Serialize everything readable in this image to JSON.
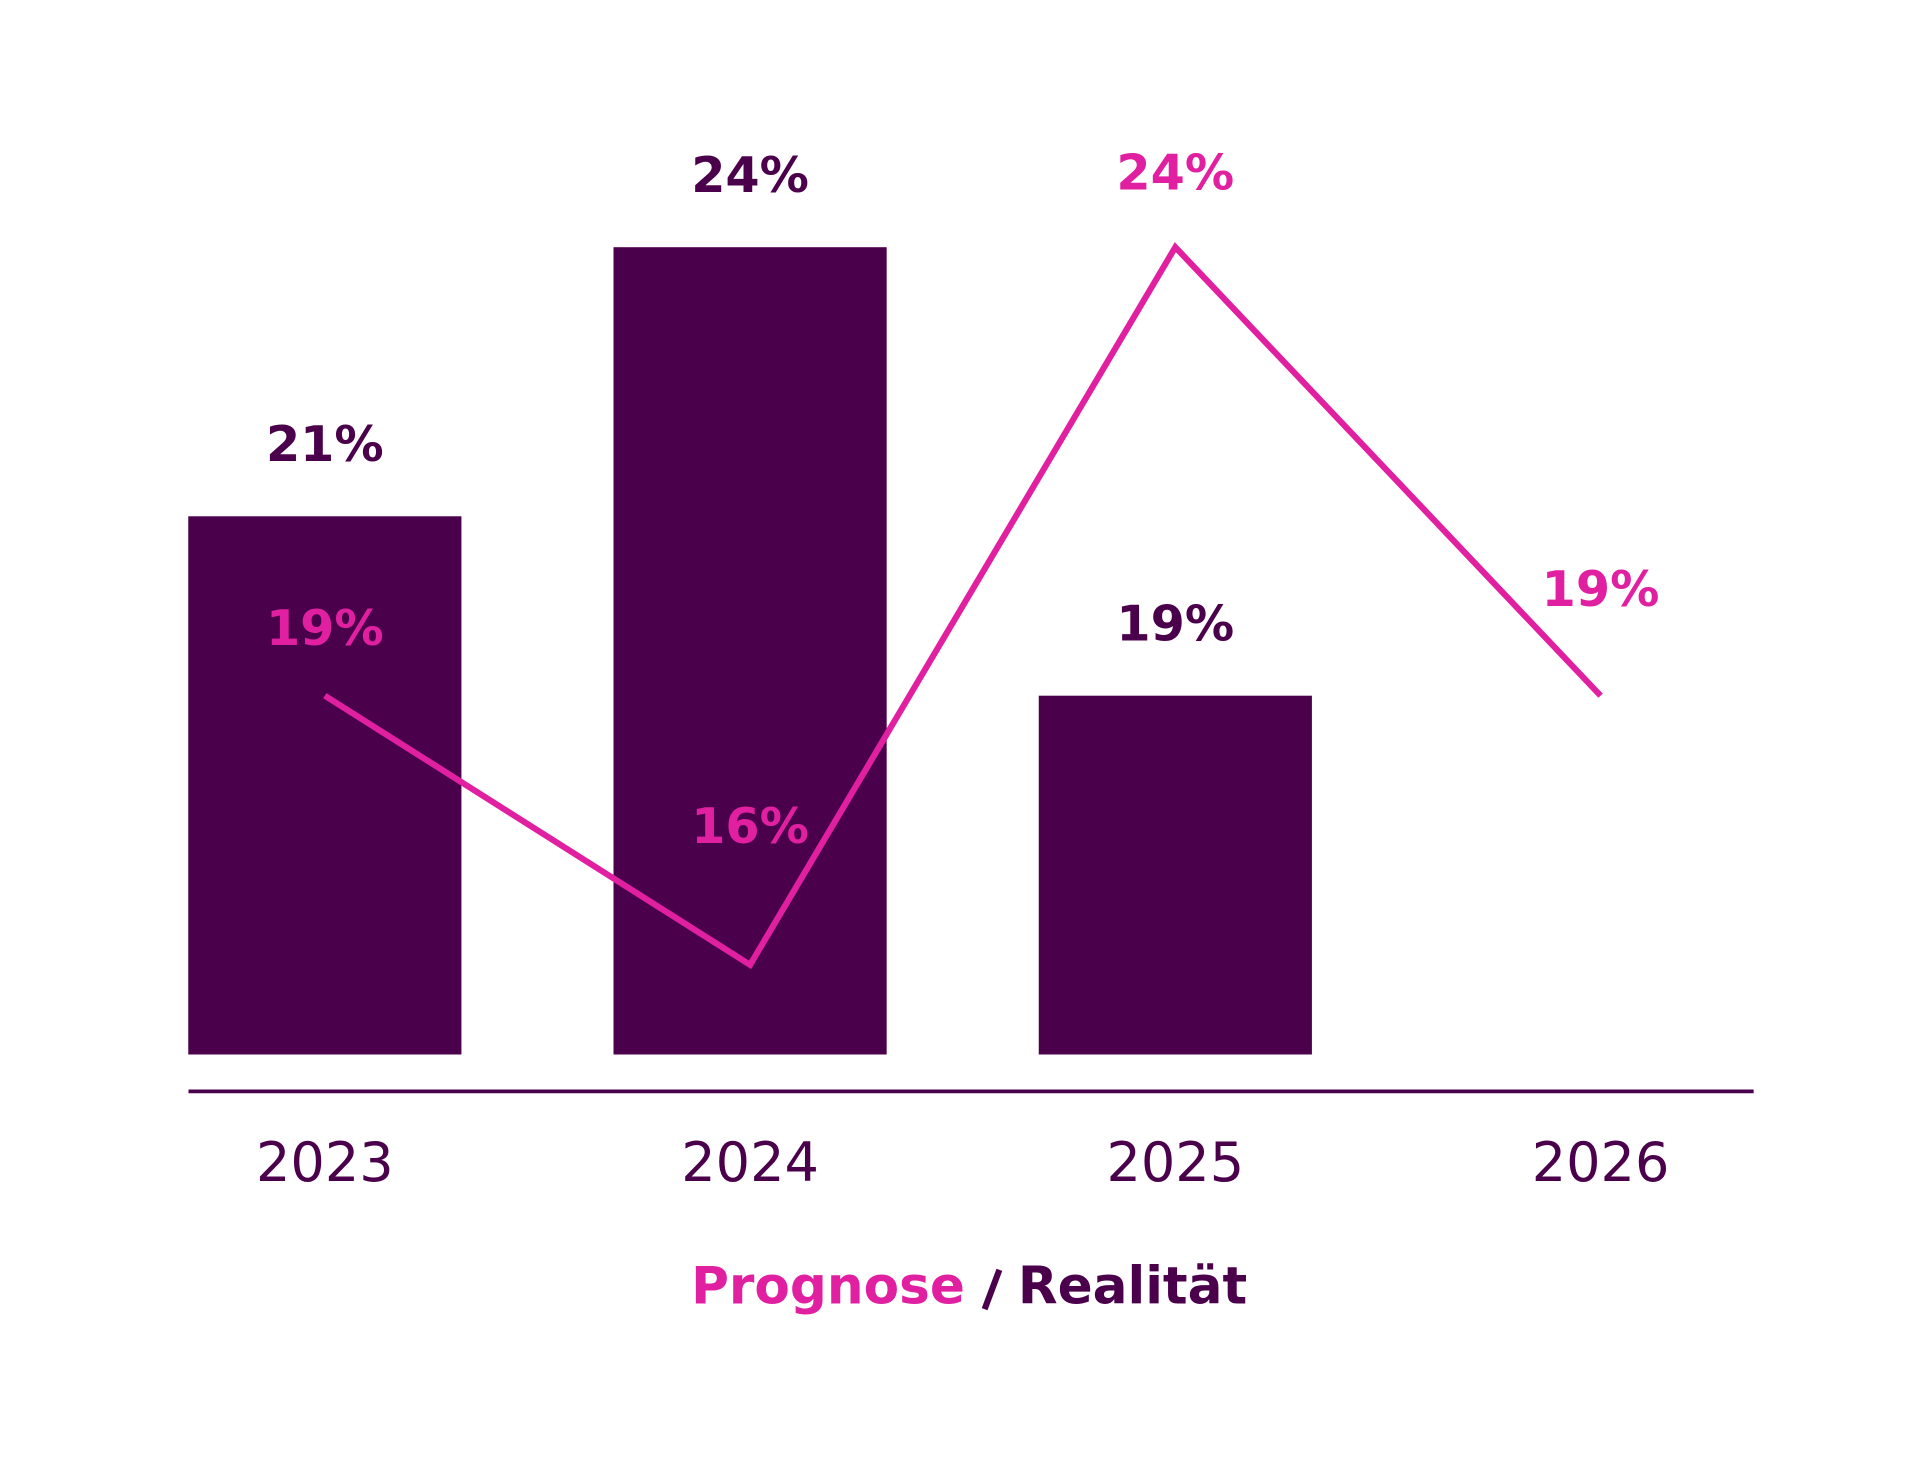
{
  "chart_data": {
    "type": "bar-line",
    "categories": [
      "2023",
      "2024",
      "2025",
      "2026"
    ],
    "ylim": [
      15,
      25
    ],
    "series": [
      {
        "name": "Prognose",
        "type": "line",
        "color": "#e020a0",
        "values": [
          19,
          16,
          24,
          19
        ],
        "value_labels": [
          "19%",
          "16%",
          "24%",
          "19%"
        ]
      },
      {
        "name": "Realität",
        "type": "bar",
        "color": "#4b004b",
        "values": [
          21,
          24,
          19,
          null
        ],
        "value_labels": [
          "21%",
          "24%",
          "19%",
          null
        ]
      }
    ]
  }
}
